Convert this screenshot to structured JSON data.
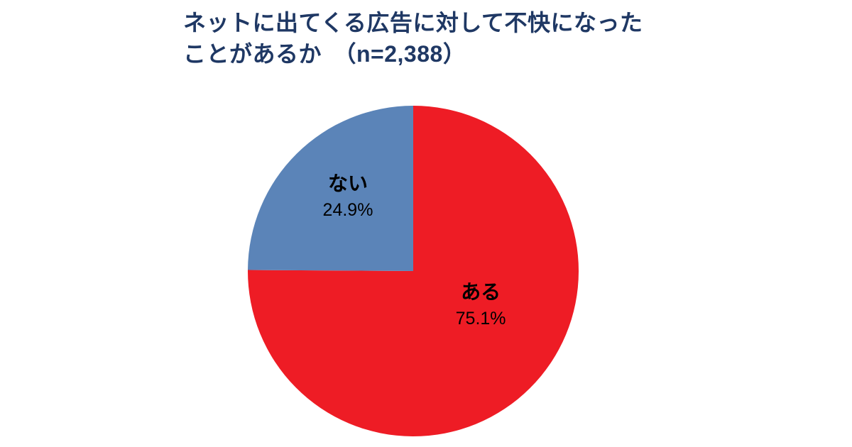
{
  "chart_data": {
    "type": "pie",
    "title": "ネットに出てくる広告に対して不快になったことがあるか　（n=2,388）",
    "title_line1": "ネットに出てくる広告に対して不快になった",
    "title_line2": "ことがあるか　（n=2,388）",
    "sample_size": 2388,
    "unit": "%",
    "legend": "none",
    "start_angle_deg": 0,
    "direction": "clockwise",
    "slices": [
      {
        "label": "ある",
        "value": 75.1,
        "display_value": "75.1%",
        "color": "#ee1c25"
      },
      {
        "label": "ない",
        "value": 24.9,
        "display_value": "24.9%",
        "color": "#5b84b8"
      }
    ],
    "title_color": "#1f3864",
    "label_color": "#000000",
    "background": "#ffffff"
  }
}
